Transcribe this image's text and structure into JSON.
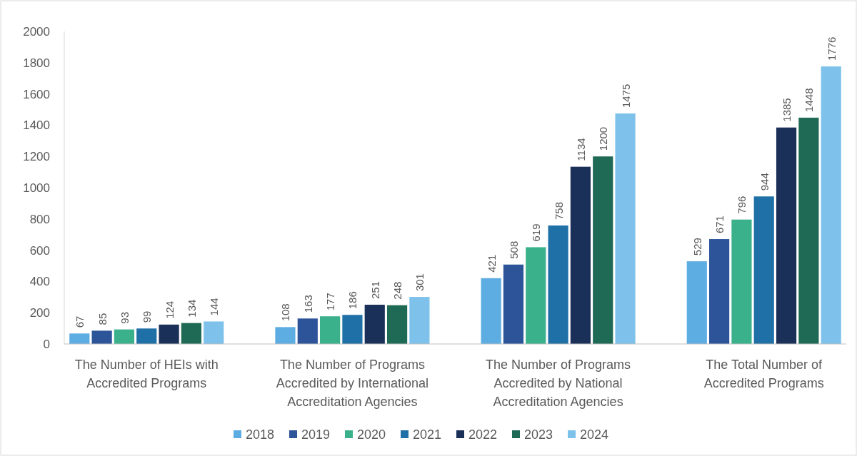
{
  "chart_data": {
    "type": "bar",
    "categories": [
      "The Number of HEIs with Accredited Programs",
      "The Number of Programs Accredited by International Accreditation Agencies",
      "The Number of Programs Accredited by National Accreditation Agencies",
      "The Total Number of Accredited Programs"
    ],
    "series": [
      {
        "name": "2018",
        "color": "#5dade2",
        "values": [
          67,
          108,
          421,
          529
        ]
      },
      {
        "name": "2019",
        "color": "#2d5499",
        "values": [
          85,
          163,
          508,
          671
        ]
      },
      {
        "name": "2020",
        "color": "#3bb18b",
        "values": [
          93,
          177,
          619,
          796
        ]
      },
      {
        "name": "2021",
        "color": "#1f70a6",
        "values": [
          99,
          186,
          758,
          944
        ]
      },
      {
        "name": "2022",
        "color": "#1b3058",
        "values": [
          124,
          251,
          1134,
          1385
        ]
      },
      {
        "name": "2023",
        "color": "#1f6a54",
        "values": [
          134,
          248,
          1200,
          1448
        ]
      },
      {
        "name": "2024",
        "color": "#7ec2eb",
        "values": [
          144,
          301,
          1475,
          1776
        ]
      }
    ],
    "ylim": [
      0,
      2000
    ],
    "yticks": [
      0,
      200,
      400,
      600,
      800,
      1000,
      1200,
      1400,
      1600,
      1800,
      2000
    ],
    "data_labels": true,
    "legend": "bottom",
    "grid": false
  }
}
